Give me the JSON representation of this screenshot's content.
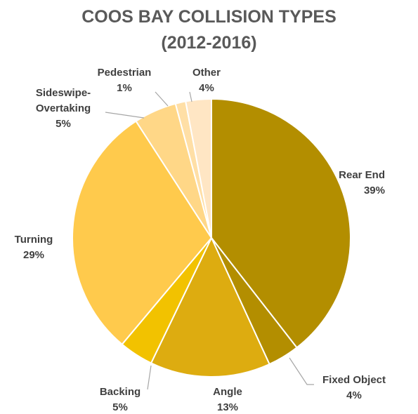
{
  "chart_data": {
    "type": "pie",
    "title": "COOS BAY COLLISION TYPES",
    "subtitle": "(2012-2016)",
    "slices": [
      {
        "label": "Rear End",
        "value": 39,
        "display": "39%",
        "color": "#B38E00"
      },
      {
        "label": "Fixed Object",
        "value": 4,
        "display": "4%",
        "color": "#B38E00"
      },
      {
        "label": "Angle",
        "value": 13,
        "display": "13%",
        "color": "#DDAC10"
      },
      {
        "label": "Backing",
        "value": 5,
        "display": "5%",
        "color": "#F2C200"
      },
      {
        "label": "Turning",
        "value": 29,
        "display": "29%",
        "color": "#FFCA4C"
      },
      {
        "label": "Sideswipe-Overtaking",
        "value": 5,
        "display": "5%",
        "color": "#FFD787"
      },
      {
        "label": "Pedestrian",
        "value": 1,
        "display": "1%",
        "color": "#FFDFA6"
      },
      {
        "label": "Other",
        "value": 4,
        "display": "4%",
        "color": "#FFE6C4"
      }
    ]
  }
}
